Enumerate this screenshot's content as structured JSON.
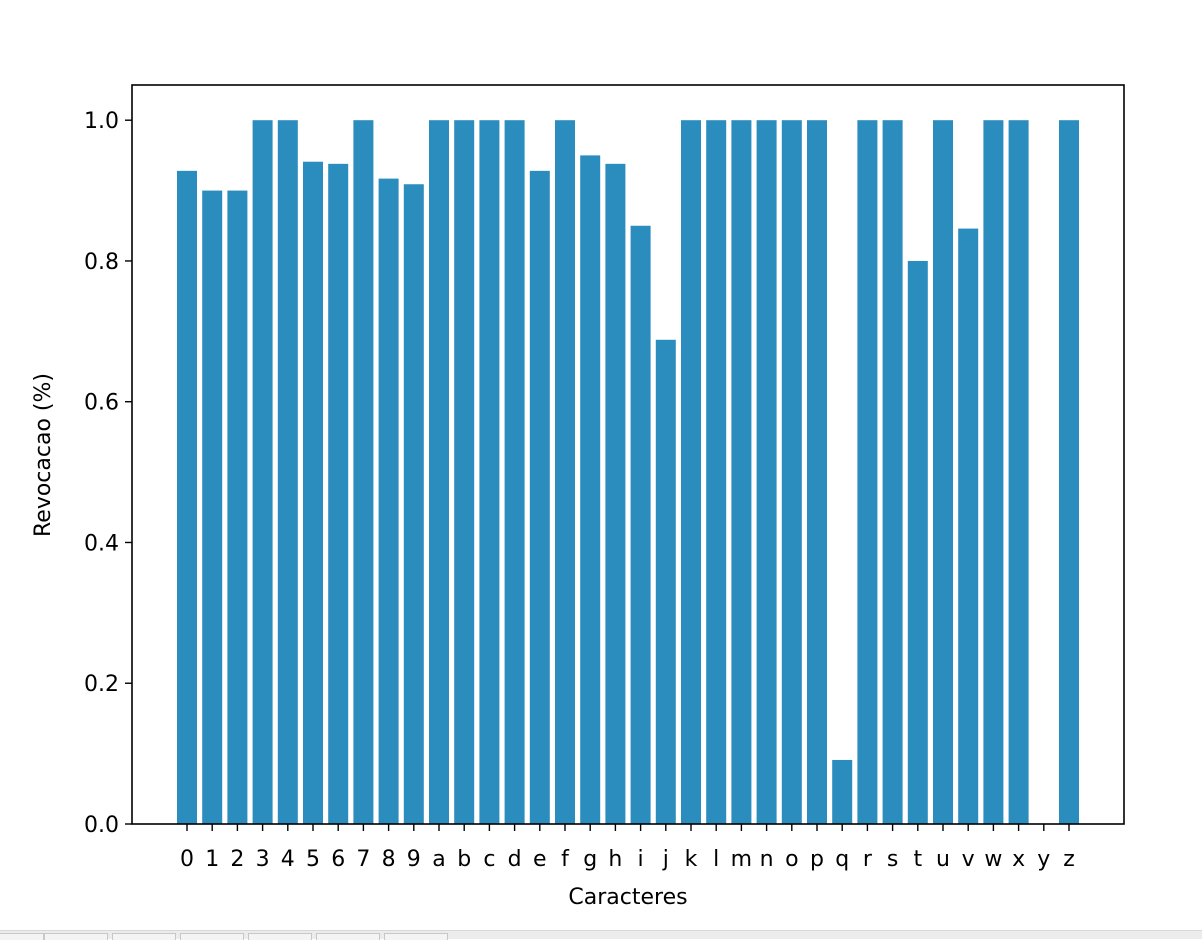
{
  "chart_data": {
    "type": "bar",
    "categories": [
      "0",
      "1",
      "2",
      "3",
      "4",
      "5",
      "6",
      "7",
      "8",
      "9",
      "a",
      "b",
      "c",
      "d",
      "e",
      "f",
      "g",
      "h",
      "i",
      "j",
      "k",
      "l",
      "m",
      "n",
      "o",
      "p",
      "q",
      "r",
      "s",
      "t",
      "u",
      "v",
      "w",
      "x",
      "y",
      "z"
    ],
    "values": [
      0.928,
      0.9,
      0.9,
      1.0,
      1.0,
      0.941,
      0.938,
      1.0,
      0.917,
      0.909,
      1.0,
      1.0,
      1.0,
      1.0,
      0.928,
      1.0,
      0.95,
      0.938,
      0.85,
      0.688,
      1.0,
      1.0,
      1.0,
      1.0,
      1.0,
      1.0,
      0.091,
      1.0,
      1.0,
      0.8,
      1.0,
      0.846,
      1.0,
      1.0,
      0.0,
      1.0
    ],
    "title": "",
    "xlabel": "Caracteres",
    "ylabel": "Revocacao (%)",
    "ylim": [
      0,
      1.05
    ],
    "yticks": [
      "0.0",
      "0.2",
      "0.4",
      "0.6",
      "0.8",
      "1.0"
    ],
    "bar_color": "#2b8cbe",
    "grid": false,
    "legend": "none"
  }
}
